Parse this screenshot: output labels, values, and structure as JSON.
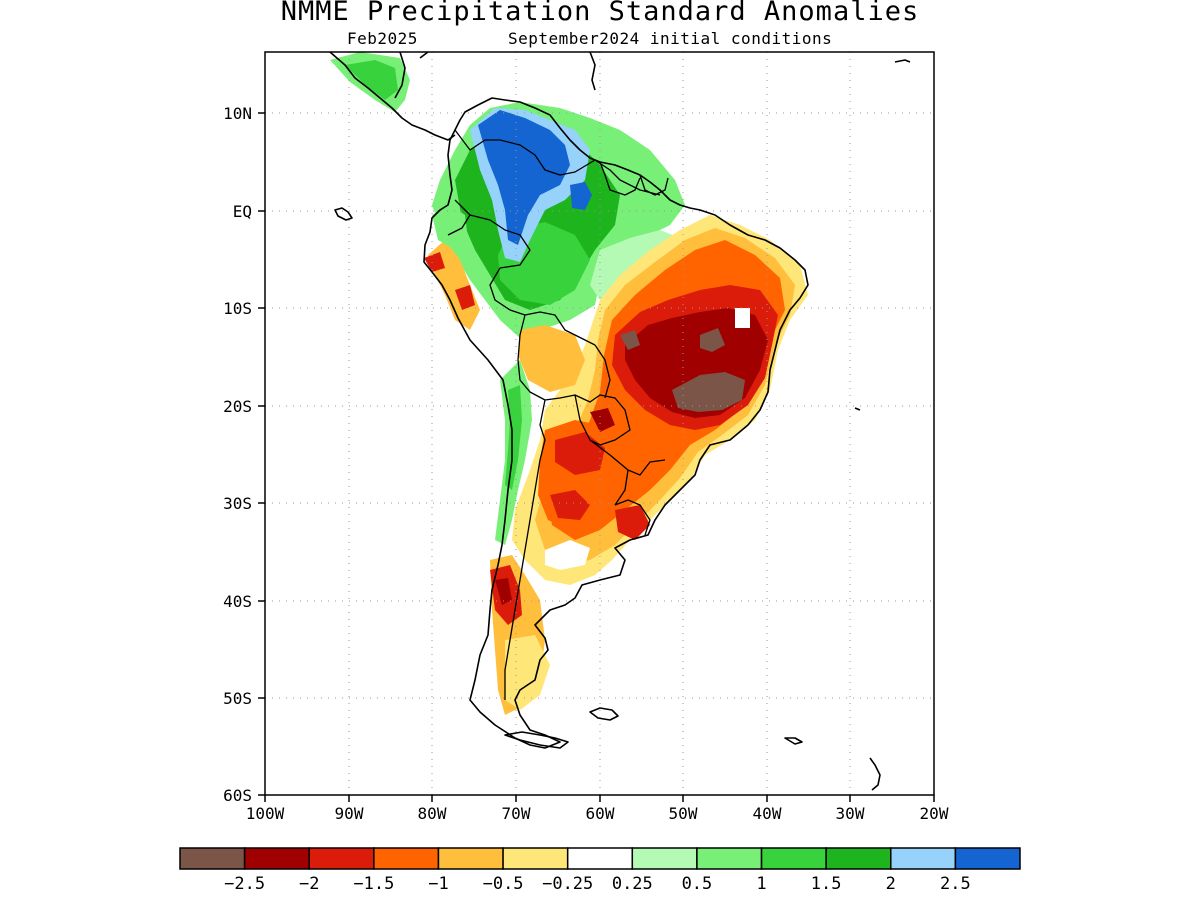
{
  "title": "NMME Precipitation Standard Anomalies",
  "subtitle_left": "Feb2025",
  "subtitle_right": "September2024 initial conditions",
  "axes": {
    "lat_ticks": [
      "10N",
      "EQ",
      "10S",
      "20S",
      "30S",
      "40S",
      "50S",
      "60S"
    ],
    "lon_ticks": [
      "100W",
      "90W",
      "80W",
      "70W",
      "60W",
      "50W",
      "40W",
      "30W",
      "20W"
    ],
    "lat_range": [
      -60,
      15
    ],
    "lon_range": [
      -100,
      -20
    ],
    "grid": "dotted"
  },
  "legend": {
    "placement": "bottom",
    "bins": [
      {
        "color": "#7a5548"
      },
      {
        "color": "#a00000"
      },
      {
        "color": "#dc1c0a"
      },
      {
        "color": "#ff6400"
      },
      {
        "color": "#ffbe3c"
      },
      {
        "color": "#ffe678"
      },
      {
        "color": "#ffffff"
      },
      {
        "color": "#b4fab4"
      },
      {
        "color": "#78f078"
      },
      {
        "color": "#37d23c"
      },
      {
        "color": "#1eb41e"
      },
      {
        "color": "#96d2fa"
      },
      {
        "color": "#1464d2"
      }
    ],
    "labels": [
      "−2.5",
      "−2",
      "−1.5",
      "−1",
      "−0.5",
      "−0.25",
      "0.25",
      "0.5",
      "1",
      "1.5",
      "2",
      "2.5"
    ]
  },
  "colors": {
    "brown": "#7a5548",
    "dark_red": "#a00000",
    "red": "#dc1c0a",
    "orange": "#ff6400",
    "light_orange": "#ffbe3c",
    "yellow": "#ffe678",
    "white": "#ffffff",
    "pale_green": "#b4fab4",
    "light_green": "#78f078",
    "green": "#37d23c",
    "dark_green": "#1eb41e",
    "light_blue": "#96d2fa",
    "blue": "#1464d2"
  }
}
